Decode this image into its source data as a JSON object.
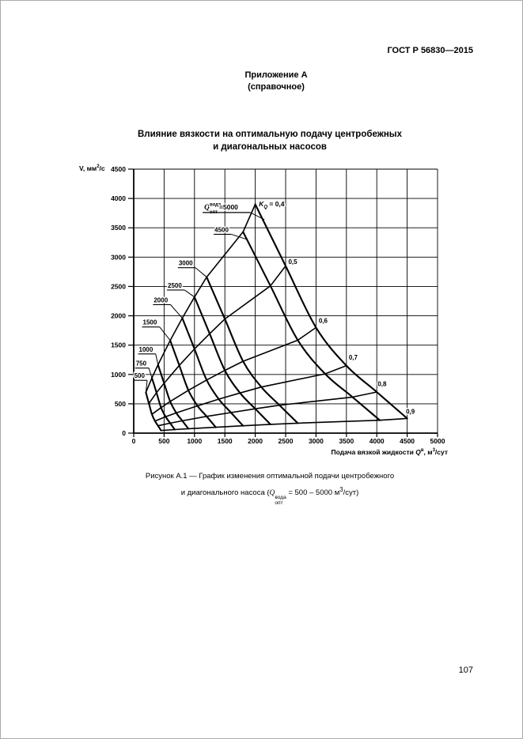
{
  "page": {
    "header": "ГОСТ Р 56830—2015",
    "annex": {
      "line1": "Приложение А",
      "line2": "(справочное)"
    },
    "title": {
      "line1": "Влияние вязкости на оптимальную подачу центробежных",
      "line2": "и диагональных насосов"
    },
    "caption": {
      "line1": "Рисунок А.1 — График изменения оптимальной подачи центробежного",
      "line2_prefix": "и диагонального насоса (",
      "q_sym": "Q",
      "q_sup": "вода",
      "q_sub": "опт",
      "line2_mid": " = 500 – 5000 м",
      "line2_sup": "3",
      "line2_suffix": "/сут)"
    },
    "page_number": "107"
  },
  "chart_data": {
    "type": "line",
    "title": "Влияние вязкости на оптимальную подачу центробежных и диагональных насосов",
    "xlabel_parts": {
      "prefix": "Подача вязкой жидкости ",
      "sym": "Q",
      "sup": "в",
      "mid": ", м",
      "sup2": "3",
      "suffix": "/сут"
    },
    "ylabel_parts": {
      "prefix": "V, мм",
      "sup": "2",
      "suffix": "/с"
    },
    "xlim": [
      0,
      5000
    ],
    "ylim": [
      0,
      4500
    ],
    "xtick_step": 500,
    "ytick_step": 500,
    "grid": true,
    "legend_position": "none",
    "k_values": [
      0.9,
      0.8,
      0.7,
      0.6,
      0.5,
      0.4
    ],
    "series": [
      {
        "name": "500",
        "points": [
          [
            450,
            45
          ],
          [
            400,
            125
          ],
          [
            350,
            205
          ],
          [
            300,
            320
          ],
          [
            250,
            505
          ],
          [
            200,
            695
          ]
        ]
      },
      {
        "name": "750",
        "points": [
          [
            675,
            60
          ],
          [
            600,
            170
          ],
          [
            525,
            280
          ],
          [
            450,
            435
          ],
          [
            375,
            690
          ],
          [
            300,
            940
          ]
        ]
      },
      {
        "name": "1000",
        "points": [
          [
            900,
            75
          ],
          [
            800,
            210
          ],
          [
            700,
            345
          ],
          [
            600,
            540
          ],
          [
            500,
            850
          ],
          [
            400,
            1165
          ]
        ]
      },
      {
        "name": "1500",
        "points": [
          [
            1350,
            100
          ],
          [
            1200,
            285
          ],
          [
            1050,
            465
          ],
          [
            900,
            730
          ],
          [
            750,
            1155
          ],
          [
            600,
            1580
          ]
        ]
      },
      {
        "name": "2000",
        "points": [
          [
            1800,
            125
          ],
          [
            1600,
            350
          ],
          [
            1400,
            580
          ],
          [
            1200,
            905
          ],
          [
            1000,
            1435
          ],
          [
            800,
            1960
          ]
        ]
      },
      {
        "name": "2500",
        "points": [
          [
            2250,
            150
          ],
          [
            2000,
            415
          ],
          [
            1750,
            685
          ],
          [
            1500,
            1070
          ],
          [
            1250,
            1695
          ],
          [
            1000,
            2320
          ]
        ]
      },
      {
        "name": "3000",
        "points": [
          [
            2700,
            170
          ],
          [
            2400,
            475
          ],
          [
            2100,
            785
          ],
          [
            1800,
            1225
          ],
          [
            1500,
            1945
          ],
          [
            1200,
            2660
          ]
        ]
      },
      {
        "name": "4500",
        "points": [
          [
            4050,
            220
          ],
          [
            3600,
            615
          ],
          [
            3150,
            1010
          ],
          [
            2700,
            1585
          ],
          [
            2250,
            2510
          ],
          [
            1800,
            3430
          ]
        ]
      },
      {
        "name": "5000",
        "points": [
          [
            4500,
            250
          ],
          [
            4000,
            700
          ],
          [
            3500,
            1150
          ],
          [
            3000,
            1800
          ],
          [
            2500,
            2850
          ],
          [
            2000,
            3900
          ]
        ]
      }
    ],
    "q_labels": [
      {
        "text": "500",
        "x": 8,
        "v": 940,
        "target": [
          200,
          695
        ]
      },
      {
        "text": "750",
        "x": 35,
        "v": 1150,
        "target": [
          300,
          940
        ]
      },
      {
        "text": "1000",
        "x": 85,
        "v": 1390,
        "target": [
          400,
          1165
        ]
      },
      {
        "text": "1500",
        "x": 150,
        "v": 1850,
        "target": [
          600,
          1580
        ]
      },
      {
        "text": "2000",
        "x": 330,
        "v": 2230,
        "target": [
          800,
          1960
        ]
      },
      {
        "text": "2500",
        "x": 560,
        "v": 2480,
        "target": [
          1000,
          2320
        ]
      },
      {
        "text": "3000",
        "x": 740,
        "v": 2860,
        "target": [
          1200,
          2660
        ]
      },
      {
        "text": "4500",
        "x": 1330,
        "v": 3430,
        "target": [
          1870,
          3300
        ]
      }
    ],
    "k_labels": [
      {
        "text": "0,5",
        "x": 2545,
        "v": 2880
      },
      {
        "text": "0,6",
        "x": 3045,
        "v": 1880
      },
      {
        "text": "0,7",
        "x": 3540,
        "v": 1250
      },
      {
        "text": "0,8",
        "x": 4015,
        "v": 800
      },
      {
        "text": "0,9",
        "x": 4480,
        "v": 330
      }
    ],
    "q_max_label": {
      "sym": "Q",
      "sup": "вода",
      "sub": "опт",
      "eq": "=5000",
      "x": 1160,
      "v": 3815,
      "target": [
        2150,
        3640
      ]
    },
    "kq_label": {
      "pre": "K",
      "sub": "Q",
      "eq": " = 0,4",
      "x": 2060,
      "v": 3870
    }
  }
}
